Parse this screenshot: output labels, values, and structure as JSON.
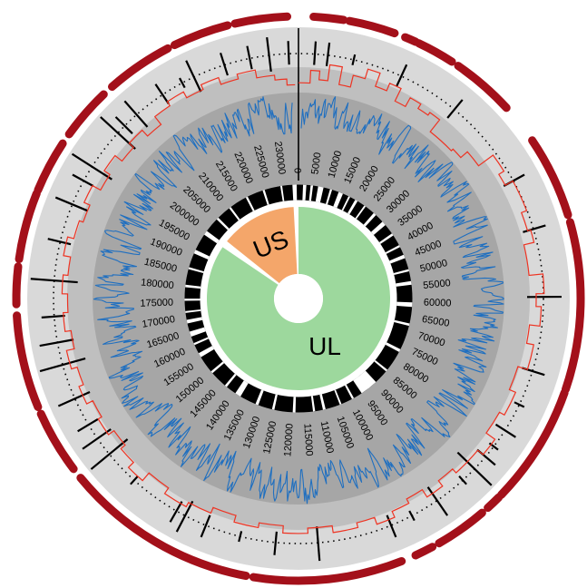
{
  "genome": {
    "length": 235000,
    "tick_step": 5000,
    "tick_labels": [
      "0",
      "5000",
      "10000",
      "15000",
      "20000",
      "25000",
      "30000",
      "35000",
      "40000",
      "45000",
      "50000",
      "55000",
      "60000",
      "65000",
      "70000",
      "75000",
      "80000",
      "85000",
      "90000",
      "95000",
      "100000",
      "105000",
      "110000",
      "115000",
      "120000",
      "125000",
      "130000",
      "135000",
      "140000",
      "145000",
      "150000",
      "155000",
      "160000",
      "165000",
      "170000",
      "175000",
      "180000",
      "185000",
      "190000",
      "195000",
      "200000",
      "205000",
      "210000",
      "215000",
      "220000",
      "225000",
      "230000"
    ]
  },
  "regions": [
    {
      "label": "UL",
      "start": 0,
      "end": 198500,
      "color": "#9dd89d"
    },
    {
      "label": "US",
      "start": 201500,
      "end": 233000,
      "color": "#f4a66a"
    }
  ],
  "colors": {
    "outer_segments": "#a3101a",
    "ring_light": "#d9d9d9",
    "ring_mid": "#bfbfbf",
    "ring_dark": "#a6a6a6",
    "step_line": "#ee3322",
    "gc_line": "#1f6fc0",
    "gene_ring": "#000000"
  },
  "outer_segments": [
    [
      2000,
      6000
    ],
    [
      6800,
      13000
    ],
    [
      14500,
      16000
    ],
    [
      16500,
      21500
    ],
    [
      22500,
      31000
    ],
    [
      36500,
      47500
    ],
    [
      48500,
      71000
    ],
    [
      71500,
      87500
    ],
    [
      88000,
      90000
    ],
    [
      91000,
      98000
    ],
    [
      99000,
      101500
    ],
    [
      103500,
      123500
    ],
    [
      124500,
      150500
    ],
    [
      152000,
      160500
    ],
    [
      161500,
      174000
    ],
    [
      175500,
      180500
    ],
    [
      181500,
      190500
    ],
    [
      191000,
      198000
    ],
    [
      199500,
      206500
    ],
    [
      208000,
      217000
    ],
    [
      218000,
      225500
    ],
    [
      226500,
      233500
    ]
  ],
  "repeat_marks": [
    [
      2500,
      1
    ],
    [
      4500,
      1
    ],
    [
      8500,
      0
    ],
    [
      16200,
      1
    ],
    [
      25800,
      1
    ],
    [
      40000,
      1
    ],
    [
      48000,
      1
    ],
    [
      58500,
      2
    ],
    [
      70000,
      1
    ],
    [
      75500,
      0
    ],
    [
      80000,
      1
    ],
    [
      83000,
      0
    ],
    [
      85000,
      1
    ],
    [
      87500,
      3
    ],
    [
      90000,
      0
    ],
    [
      95000,
      2
    ],
    [
      99500,
      0
    ],
    [
      103000,
      1
    ],
    [
      114500,
      2
    ],
    [
      121000,
      1
    ],
    [
      126500,
      0
    ],
    [
      132000,
      1
    ],
    [
      135500,
      2
    ],
    [
      137000,
      1
    ],
    [
      145000,
      0
    ],
    [
      150500,
      3
    ],
    [
      153500,
      2
    ],
    [
      156000,
      1
    ],
    [
      160500,
      2
    ],
    [
      166000,
      3
    ],
    [
      169500,
      2
    ],
    [
      173500,
      1
    ],
    [
      179000,
      3
    ],
    [
      185000,
      1
    ],
    [
      191000,
      2
    ],
    [
      195000,
      1
    ],
    [
      197500,
      3
    ],
    [
      204000,
      3
    ],
    [
      205500,
      1
    ],
    [
      208000,
      2
    ],
    [
      213000,
      1
    ],
    [
      216500,
      0
    ],
    [
      218500,
      2
    ],
    [
      223500,
      1
    ],
    [
      227500,
      1
    ],
    [
      230500,
      2
    ],
    [
      233500,
      1
    ]
  ],
  "step_profile": [
    [
      0,
      0.2
    ],
    [
      2000,
      0.52
    ],
    [
      3500,
      0.3
    ],
    [
      5000,
      0.7
    ],
    [
      7000,
      0.25
    ],
    [
      9000,
      0.55
    ],
    [
      11000,
      0.8
    ],
    [
      13000,
      0.45
    ],
    [
      15000,
      0.65
    ],
    [
      17000,
      0.3
    ],
    [
      19000,
      0.55
    ],
    [
      21000,
      0.42
    ],
    [
      23000,
      0.5
    ],
    [
      25000,
      0.12
    ],
    [
      30000,
      0.18
    ],
    [
      32000,
      0.4
    ],
    [
      35000,
      0.85
    ],
    [
      38000,
      0.7
    ],
    [
      40000,
      0.92
    ],
    [
      45000,
      0.78
    ],
    [
      48000,
      0.86
    ],
    [
      50000,
      0.6
    ],
    [
      55000,
      0.95
    ],
    [
      58000,
      0.75
    ],
    [
      60000,
      0.88
    ],
    [
      63000,
      0.62
    ],
    [
      66000,
      0.8
    ],
    [
      70000,
      0.55
    ],
    [
      74000,
      0.72
    ],
    [
      78000,
      0.58
    ],
    [
      82000,
      0.85
    ],
    [
      85000,
      0.68
    ],
    [
      90000,
      0.55
    ],
    [
      93000,
      0.72
    ],
    [
      96000,
      0.5
    ],
    [
      99000,
      0.62
    ],
    [
      102000,
      0.78
    ],
    [
      105000,
      0.6
    ],
    [
      108000,
      0.72
    ],
    [
      112000,
      0.55
    ],
    [
      116000,
      0.68
    ],
    [
      120000,
      0.5
    ],
    [
      124000,
      0.62
    ],
    [
      128000,
      0.45
    ],
    [
      132000,
      0.6
    ],
    [
      136000,
      0.72
    ],
    [
      140000,
      0.55
    ],
    [
      144000,
      0.8
    ],
    [
      147000,
      0.62
    ],
    [
      150000,
      0.48
    ],
    [
      153000,
      0.65
    ],
    [
      156000,
      0.55
    ],
    [
      159000,
      0.72
    ],
    [
      162000,
      0.6
    ],
    [
      165000,
      0.75
    ],
    [
      168000,
      0.55
    ],
    [
      171000,
      0.7
    ],
    [
      174000,
      0.58
    ],
    [
      177000,
      0.72
    ],
    [
      180000,
      0.6
    ],
    [
      183000,
      0.78
    ],
    [
      186000,
      0.62
    ],
    [
      189000,
      0.52
    ],
    [
      192000,
      0.68
    ],
    [
      195000,
      0.45
    ],
    [
      198000,
      0.62
    ],
    [
      201000,
      0.4
    ],
    [
      204000,
      0.55
    ],
    [
      207000,
      0.35
    ],
    [
      210000,
      0.6
    ],
    [
      213000,
      0.72
    ],
    [
      216000,
      0.55
    ],
    [
      219000,
      0.68
    ],
    [
      222000,
      0.5
    ],
    [
      225000,
      0.62
    ],
    [
      228000,
      0.42
    ],
    [
      231000,
      0.3
    ],
    [
      233000,
      0.15
    ]
  ]
}
